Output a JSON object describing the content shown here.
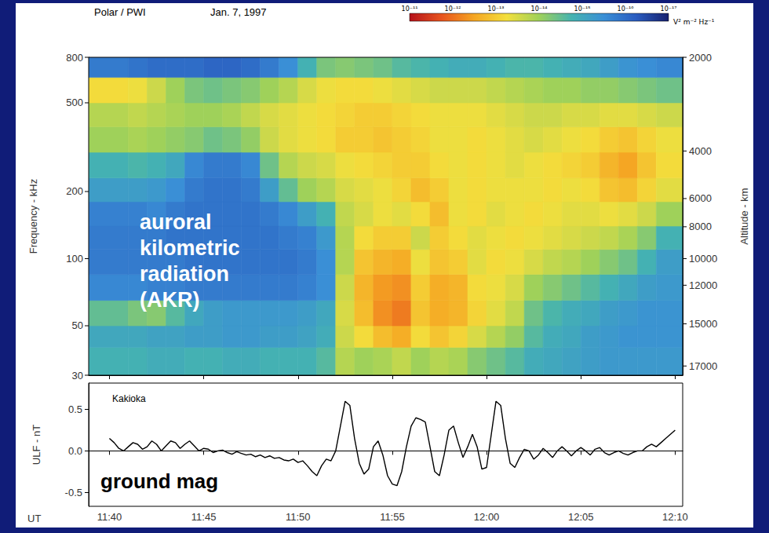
{
  "chart_data": [
    {
      "type": "heatmap",
      "title": "Polar / PWI",
      "subtitle": "Jan. 7, 1997",
      "ylabel": "Frequency - kHz",
      "altitude_label": "Altitude - km",
      "annotation": "auroral kilometric radiation (AKR)",
      "log": "y",
      "tick_labels": "y",
      "xlim": [
        698.9,
        730.4
      ],
      "xticks": [
        {
          "value": 700,
          "label": "11:40"
        },
        {
          "value": 705,
          "label": "11:45"
        },
        {
          "value": 710,
          "label": "11:50"
        },
        {
          "value": 715,
          "label": "11:55"
        },
        {
          "value": 720,
          "label": "12:00"
        },
        {
          "value": 725,
          "label": "12:05"
        },
        {
          "value": 730,
          "label": "12:10"
        }
      ],
      "ylim": [
        30,
        800
      ],
      "yticks": [
        30,
        50,
        100,
        200,
        500,
        800
      ],
      "altitude_ticks": [
        {
          "altitude": 2000,
          "frequency": 800
        },
        {
          "altitude": 4000,
          "frequency": 304
        },
        {
          "altitude": 6000,
          "frequency": 186
        },
        {
          "altitude": 8000,
          "frequency": 139
        },
        {
          "altitude": 10000,
          "frequency": 100
        },
        {
          "altitude": 12000,
          "frequency": 76
        },
        {
          "altitude": 15000,
          "frequency": 51
        },
        {
          "altitude": 17000,
          "frequency": 33
        }
      ],
      "time_edges": [
        698.9,
        701,
        702,
        703,
        704,
        705,
        706,
        707,
        708,
        709,
        710,
        711,
        712,
        713,
        714,
        715,
        716,
        717,
        718,
        719,
        720,
        721,
        722,
        723,
        724,
        725,
        726,
        727,
        728,
        729,
        730.4
      ],
      "freq_edges": [
        30,
        40,
        50,
        65,
        85,
        110,
        140,
        180,
        230,
        300,
        390,
        500,
        650,
        800
      ],
      "cells": [
        [
          -14.8,
          -15.0,
          -14.5,
          -15.6,
          -15.8,
          -15.8,
          -15.7,
          -15.2,
          -14.8,
          -14.0,
          -13.8,
          -13.2,
          -15.8
        ],
        [
          -14.8,
          -15.0,
          -14.3,
          -15.6,
          -15.8,
          -15.8,
          -15.7,
          -15.2,
          -14.7,
          -13.9,
          -13.7,
          -13.3,
          -15.9
        ],
        [
          -14.9,
          -15.1,
          -14.2,
          -15.7,
          -15.8,
          -15.8,
          -15.6,
          -15.3,
          -14.8,
          -14.0,
          -13.8,
          -13.6,
          -16.0
        ],
        [
          -14.9,
          -15.1,
          -14.6,
          -15.7,
          -15.8,
          -15.9,
          -15.8,
          -15.5,
          -15.0,
          -14.1,
          -13.9,
          -14.0,
          -16.0
        ],
        [
          -14.8,
          -15.2,
          -15.0,
          -15.8,
          -15.9,
          -15.9,
          -15.9,
          -15.8,
          -15.6,
          -14.2,
          -14.0,
          -14.3,
          -16.0
        ],
        [
          -14.8,
          -15.2,
          -15.2,
          -15.8,
          -15.9,
          -15.9,
          -15.9,
          -15.9,
          -15.8,
          -14.4,
          -14.0,
          -14.4,
          -16.1
        ],
        [
          -14.9,
          -15.3,
          -15.3,
          -15.8,
          -15.9,
          -15.9,
          -15.9,
          -15.9,
          -15.8,
          -14.3,
          -13.9,
          -14.3,
          -16.1
        ],
        [
          -14.9,
          -15.3,
          -15.3,
          -15.8,
          -15.9,
          -15.9,
          -15.9,
          -15.8,
          -15.6,
          -14.1,
          -13.7,
          -14.2,
          -16.0
        ],
        [
          -14.8,
          -15.2,
          -15.3,
          -15.8,
          -15.9,
          -15.9,
          -15.8,
          -15.2,
          -14.4,
          -13.6,
          -13.5,
          -14.0,
          -15.8
        ],
        [
          -14.8,
          -15.2,
          -15.3,
          -15.8,
          -15.9,
          -15.8,
          -15.6,
          -14.5,
          -13.8,
          -13.4,
          -13.4,
          -13.8,
          -15.5
        ],
        [
          -14.8,
          -15.1,
          -15.2,
          -15.7,
          -15.8,
          -15.7,
          -15.2,
          -14.0,
          -13.6,
          -13.3,
          -13.3,
          -13.5,
          -14.8
        ],
        [
          -14.6,
          -14.9,
          -15.0,
          -15.5,
          -15.5,
          -15.3,
          -14.8,
          -13.8,
          -13.5,
          -13.2,
          -13.2,
          -13.3,
          -14.3
        ],
        [
          -13.8,
          -13.6,
          -13.5,
          -13.6,
          -13.8,
          -13.8,
          -13.7,
          -13.5,
          -13.3,
          -13.0,
          -13.1,
          -13.2,
          -14.2
        ],
        [
          -14.0,
          -13.2,
          -12.8,
          -12.7,
          -12.9,
          -13.2,
          -13.5,
          -13.4,
          -13.2,
          -13.0,
          -13.0,
          -13.2,
          -14.3
        ],
        [
          -13.9,
          -12.8,
          -12.3,
          -12.4,
          -12.7,
          -13.0,
          -13.3,
          -13.3,
          -13.1,
          -12.9,
          -13.0,
          -13.3,
          -14.4
        ],
        [
          -13.7,
          -12.6,
          -12.1,
          -12.3,
          -12.6,
          -13.0,
          -13.4,
          -13.1,
          -13.0,
          -13.0,
          -13.1,
          -13.4,
          -14.6
        ],
        [
          -14.0,
          -13.2,
          -12.9,
          -13.0,
          -13.3,
          -13.6,
          -13.2,
          -12.8,
          -13.0,
          -13.1,
          -13.2,
          -13.5,
          -14.7
        ],
        [
          -13.8,
          -12.9,
          -12.6,
          -12.6,
          -12.9,
          -13.0,
          -12.8,
          -13.0,
          -13.2,
          -13.3,
          -13.3,
          -13.6,
          -14.8
        ],
        [
          -13.9,
          -13.1,
          -12.7,
          -12.7,
          -13.0,
          -13.2,
          -13.3,
          -13.3,
          -13.3,
          -13.3,
          -13.3,
          -13.6,
          -14.9
        ],
        [
          -14.2,
          -13.5,
          -13.1,
          -13.2,
          -13.4,
          -13.4,
          -13.2,
          -13.2,
          -13.2,
          -13.2,
          -13.3,
          -13.6,
          -14.9
        ],
        [
          -14.4,
          -13.8,
          -13.4,
          -13.3,
          -13.2,
          -13.3,
          -13.4,
          -13.3,
          -13.3,
          -13.3,
          -13.4,
          -13.7,
          -14.8
        ],
        [
          -14.6,
          -14.1,
          -13.7,
          -13.5,
          -13.3,
          -13.2,
          -13.3,
          -13.3,
          -13.4,
          -13.4,
          -13.5,
          -13.8,
          -14.7
        ],
        [
          -14.9,
          -14.6,
          -14.4,
          -14.0,
          -13.5,
          -13.3,
          -13.2,
          -13.3,
          -13.3,
          -13.5,
          -13.6,
          -13.9,
          -14.7
        ],
        [
          -15.0,
          -14.9,
          -14.7,
          -14.2,
          -13.7,
          -13.4,
          -13.3,
          -13.2,
          -13.2,
          -13.4,
          -13.6,
          -14.0,
          -14.8
        ],
        [
          -15.1,
          -15.0,
          -14.9,
          -14.4,
          -13.8,
          -13.5,
          -13.4,
          -13.3,
          -13.1,
          -13.3,
          -13.5,
          -14.0,
          -14.9
        ],
        [
          -15.2,
          -15.2,
          -15.0,
          -14.6,
          -14.0,
          -13.6,
          -13.4,
          -13.2,
          -13.0,
          -13.2,
          -13.5,
          -14.1,
          -15.0
        ],
        [
          -15.3,
          -15.3,
          -15.2,
          -14.8,
          -14.2,
          -13.7,
          -13.3,
          -12.9,
          -12.7,
          -13.0,
          -13.4,
          -14.1,
          -15.2
        ],
        [
          -15.3,
          -15.4,
          -15.3,
          -15.0,
          -14.4,
          -13.9,
          -13.4,
          -12.8,
          -12.5,
          -12.9,
          -13.4,
          -14.2,
          -15.4
        ],
        [
          -15.3,
          -15.4,
          -15.4,
          -15.2,
          -14.8,
          -14.2,
          -13.6,
          -13.1,
          -12.9,
          -13.1,
          -13.5,
          -14.3,
          -15.5
        ],
        [
          -15.3,
          -15.4,
          -15.4,
          -15.3,
          -15.2,
          -14.8,
          -14.0,
          -13.4,
          -13.2,
          -13.3,
          -13.6,
          -14.4,
          -15.6
        ]
      ],
      "colorbar": {
        "lim": [
          -17,
          -11
        ],
        "ticks": [
          {
            "value": -11,
            "label": "10⁻¹¹"
          },
          {
            "value": -12,
            "label": "10⁻¹²"
          },
          {
            "value": -13,
            "label": "10⁻¹³"
          },
          {
            "value": -14,
            "label": "10⁻¹⁴"
          },
          {
            "value": -15,
            "label": "10⁻¹⁵"
          },
          {
            "value": -16,
            "label": "10⁻¹⁶"
          },
          {
            "value": -17,
            "label": "10⁻¹⁷"
          }
        ],
        "label": "V² m⁻² Hz⁻¹"
      }
    },
    {
      "type": "line",
      "xlabel": "UT",
      "ylabel": "ULF - nT",
      "annotations": [
        "Kakioka",
        "ground mag"
      ],
      "color": "#000000",
      "xlim": [
        698.9,
        730.4
      ],
      "xticks": [
        {
          "value": 700,
          "label": "11:40"
        },
        {
          "value": 705,
          "label": "11:45"
        },
        {
          "value": 710,
          "label": "11:50"
        },
        {
          "value": 715,
          "label": "11:55"
        },
        {
          "value": 720,
          "label": "12:00"
        },
        {
          "value": 725,
          "label": "12:05"
        },
        {
          "value": 730,
          "label": "12:10"
        }
      ],
      "ylim": [
        -0.67,
        0.82
      ],
      "yticks": [
        -0.5,
        {
          "value": 0,
          "label": "0.0"
        },
        0.5
      ],
      "x": [
        700,
        700.25,
        700.5,
        700.75,
        701,
        701.25,
        701.5,
        701.75,
        702,
        702.25,
        702.5,
        702.75,
        703,
        703.25,
        703.5,
        703.75,
        704,
        704.25,
        704.5,
        704.75,
        705,
        705.25,
        705.5,
        705.75,
        706,
        706.25,
        706.5,
        706.75,
        707,
        707.25,
        707.5,
        707.75,
        708,
        708.25,
        708.5,
        708.75,
        709,
        709.25,
        709.5,
        709.75,
        710,
        710.25,
        710.5,
        710.75,
        711,
        711.25,
        711.5,
        711.75,
        712,
        712.25,
        712.5,
        712.75,
        713,
        713.25,
        713.5,
        713.75,
        714,
        714.25,
        714.5,
        714.75,
        715,
        715.25,
        715.5,
        715.75,
        716,
        716.25,
        716.5,
        716.75,
        717,
        717.25,
        717.5,
        717.75,
        718,
        718.25,
        718.5,
        718.75,
        719,
        719.25,
        719.5,
        719.75,
        720,
        720.25,
        720.5,
        720.75,
        721,
        721.25,
        721.5,
        721.75,
        722,
        722.25,
        722.5,
        722.75,
        723,
        723.25,
        723.5,
        723.75,
        724,
        724.25,
        724.5,
        724.75,
        725,
        725.25,
        725.5,
        725.75,
        726,
        726.25,
        726.5,
        726.75,
        727,
        727.25,
        727.5,
        727.75,
        728,
        728.25,
        728.5,
        728.75,
        729,
        729.25,
        729.5,
        729.75,
        730
      ],
      "values": [
        0.15,
        0.1,
        0.03,
        0,
        0.05,
        0.1,
        0.08,
        0.02,
        0.05,
        0.12,
        0.08,
        0,
        0.06,
        0.12,
        0.1,
        0.03,
        0.08,
        0.12,
        0.06,
        0,
        0.03,
        0.02,
        -0.02,
        0,
        0.01,
        -0.02,
        -0.04,
        -0.01,
        -0.03,
        -0.05,
        -0.04,
        -0.07,
        -0.05,
        -0.08,
        -0.06,
        -0.09,
        -0.08,
        -0.11,
        -0.12,
        -0.1,
        -0.14,
        -0.12,
        -0.18,
        -0.25,
        -0.3,
        -0.18,
        -0.1,
        -0.12,
        0,
        0.3,
        0.6,
        0.55,
        0.15,
        -0.15,
        -0.28,
        -0.22,
        0.05,
        0.12,
        -0.05,
        -0.3,
        -0.4,
        -0.42,
        -0.25,
        0.05,
        0.3,
        0.4,
        0.38,
        0.35,
        0.05,
        -0.25,
        -0.3,
        -0.05,
        0.25,
        0.3,
        0.1,
        -0.08,
        0.05,
        0.2,
        0.05,
        -0.22,
        -0.2,
        0.2,
        0.6,
        0.55,
        0.15,
        -0.15,
        -0.2,
        -0.08,
        0.02,
        0,
        -0.1,
        -0.05,
        0.03,
        -0.02,
        -0.08,
        0,
        0.05,
        0,
        -0.06,
        0,
        0.04,
        0,
        -0.05,
        0.02,
        0.04,
        -0.02,
        -0.05,
        -0.02,
        0,
        -0.03,
        -0.05,
        -0.02,
        0,
        0,
        0.05,
        0.08,
        0.05,
        0.1,
        0.15,
        0.2,
        0.25
      ]
    }
  ]
}
